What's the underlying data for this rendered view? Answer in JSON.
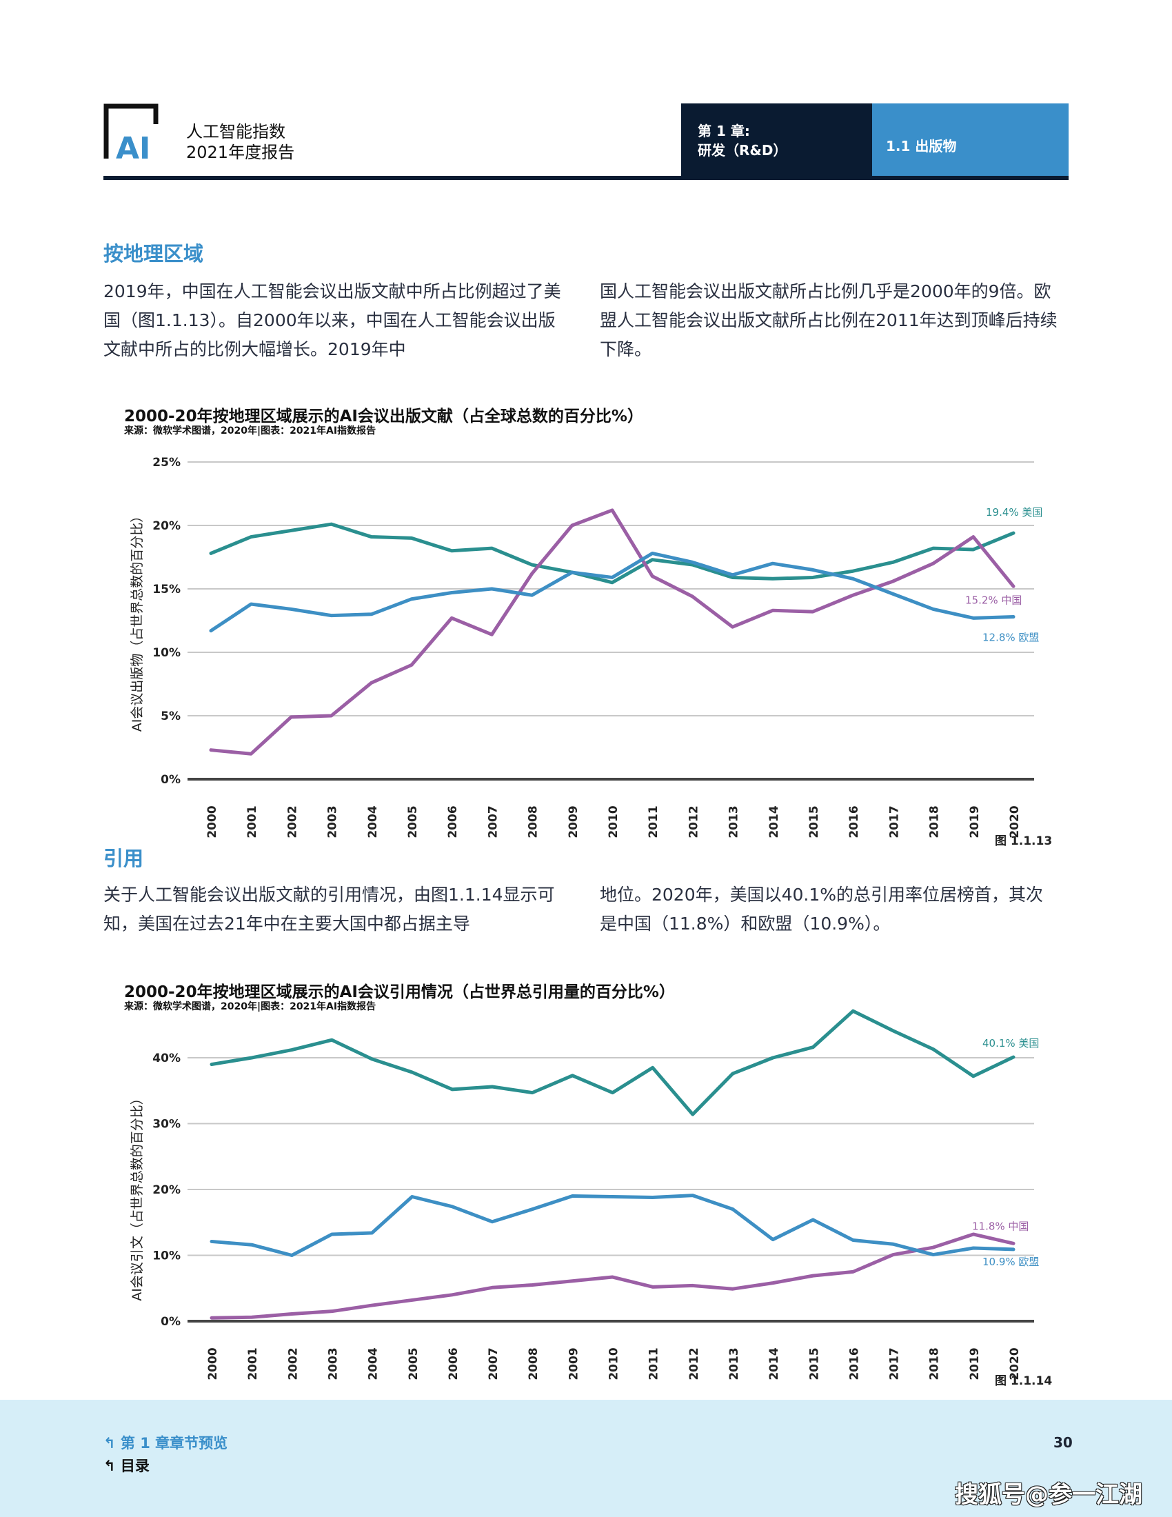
{
  "header": {
    "logo_text": "AI",
    "brand_line1": "人工智能指数",
    "brand_line2": "2021年度报告",
    "chapter_line1": "第 1 章:",
    "chapter_line2": "研发（R&D）",
    "section": "1.1 出版物"
  },
  "sections": [
    {
      "heading": "按地理区域",
      "col1": "2019年，中国在人工智能会议出版文献中所占比例超过了美国（图1.1.13）。自2000年以来，中国在人工智能会议出版文献中所占的比例大幅增长。2019年中",
      "col2": "国人工智能会议出版文献所占比例几乎是2000年的9倍。欧盟人工智能会议出版文献所占比例在2011年达到顶峰后持续下降。"
    },
    {
      "heading": "引用",
      "col1": "关于人工智能会议出版文献的引用情况，由图1.1.14显示可知，美国在过去21年中在主要大国中都占据主导",
      "col2": "地位。2020年，美国以40.1%的总引用率位居榜首，其次是中国（11.8%）和欧盟（10.9%）。"
    }
  ],
  "chart_data": [
    {
      "type": "line",
      "title": "2000-20年按地理区域展示的AI会议出版文献（占全球总数的百分比%）",
      "source": "来源：微软学术图谱，2020年|图表：2021年AI指数报告",
      "ylabel": "AI会议出版物（占世界总数的百分比）",
      "xlabel": "",
      "figure_label": "图 1.1.13",
      "ylim": [
        0,
        25
      ],
      "yticks": [
        "0%",
        "5%",
        "10%",
        "15%",
        "20%",
        "25%"
      ],
      "ytick_values": [
        0,
        5,
        10,
        15,
        20,
        25
      ],
      "grid": true,
      "categories": [
        "2000",
        "2001",
        "2002",
        "2003",
        "2004",
        "2005",
        "2006",
        "2007",
        "2008",
        "2009",
        "2010",
        "2011",
        "2012",
        "2013",
        "2014",
        "2015",
        "2016",
        "2017",
        "2018",
        "2019",
        "2020"
      ],
      "series": [
        {
          "name": "美国",
          "end_label": "19.4% 美国",
          "color": "#2a8f8f",
          "values": [
            17.8,
            19.1,
            19.6,
            20.1,
            19.1,
            19.0,
            18.0,
            18.2,
            16.9,
            16.3,
            15.5,
            17.3,
            16.9,
            15.9,
            15.8,
            15.9,
            16.4,
            17.1,
            18.2,
            18.1,
            19.4
          ]
        },
        {
          "name": "中国",
          "end_label": "15.2% 中国",
          "color": "#9b5fa5",
          "values": [
            2.3,
            2.0,
            4.9,
            5.0,
            7.6,
            9.0,
            12.7,
            11.4,
            16.2,
            20.0,
            21.2,
            16.0,
            14.4,
            12.0,
            13.3,
            13.2,
            14.5,
            15.6,
            17.0,
            19.1,
            15.2
          ]
        },
        {
          "name": "欧盟",
          "end_label": "12.8% 欧盟",
          "color": "#3d8fc4",
          "values": [
            11.7,
            13.8,
            13.4,
            12.9,
            13.0,
            14.2,
            14.7,
            15.0,
            14.5,
            16.3,
            15.9,
            17.8,
            17.1,
            16.1,
            17.0,
            16.5,
            15.8,
            14.6,
            13.4,
            12.7,
            12.8
          ]
        }
      ]
    },
    {
      "type": "line",
      "title": "2000-20年按地理区域展示的AI会议引用情况（占世界总引用量的百分比%）",
      "source": "来源：微软学术图谱，2020年|图表：2021年AI指数报告",
      "ylabel": "AI会议引文（占世界总数的百分比）",
      "xlabel": "",
      "figure_label": "图 1.1.14",
      "ylim": [
        0,
        48
      ],
      "yticks": [
        "0%",
        "10%",
        "20%",
        "30%",
        "40%"
      ],
      "ytick_values": [
        0,
        10,
        20,
        30,
        40
      ],
      "grid": true,
      "categories": [
        "2000",
        "2001",
        "2002",
        "2003",
        "2004",
        "2005",
        "2006",
        "2007",
        "2008",
        "2009",
        "2010",
        "2011",
        "2012",
        "2013",
        "2014",
        "2015",
        "2016",
        "2017",
        "2018",
        "2019",
        "2020"
      ],
      "series": [
        {
          "name": "美国",
          "end_label": "40.1% 美国",
          "color": "#2a8f8f",
          "values": [
            39.0,
            40.0,
            41.2,
            42.7,
            39.8,
            37.8,
            35.2,
            35.6,
            34.7,
            37.3,
            34.7,
            38.5,
            31.4,
            37.6,
            40.0,
            41.6,
            47.1,
            44.1,
            41.3,
            37.2,
            40.1
          ]
        },
        {
          "name": "中国",
          "end_label": "11.8% 中国",
          "color": "#9b5fa5",
          "values": [
            0.5,
            0.6,
            1.1,
            1.5,
            2.4,
            3.2,
            4.0,
            5.1,
            5.5,
            6.1,
            6.7,
            5.2,
            5.4,
            4.9,
            5.8,
            6.9,
            7.5,
            10.1,
            11.2,
            13.2,
            11.8
          ]
        },
        {
          "name": "欧盟",
          "end_label": "10.9% 欧盟",
          "color": "#3d8fc4",
          "values": [
            12.1,
            11.6,
            10.0,
            13.2,
            13.4,
            18.9,
            17.4,
            15.1,
            17.0,
            19.0,
            18.9,
            18.8,
            19.1,
            17.0,
            12.4,
            15.4,
            12.3,
            11.7,
            10.1,
            11.1,
            10.9
          ]
        }
      ]
    }
  ],
  "footer": {
    "chapter_preview": "第 1 章章节预览",
    "toc": "目录",
    "page_number": "30",
    "watermark": "搜狐号@参一江湖"
  },
  "colors": {
    "navy": "#0a1b31",
    "accent_blue": "#3a8fca",
    "footer_bg": "#d6eef8"
  }
}
